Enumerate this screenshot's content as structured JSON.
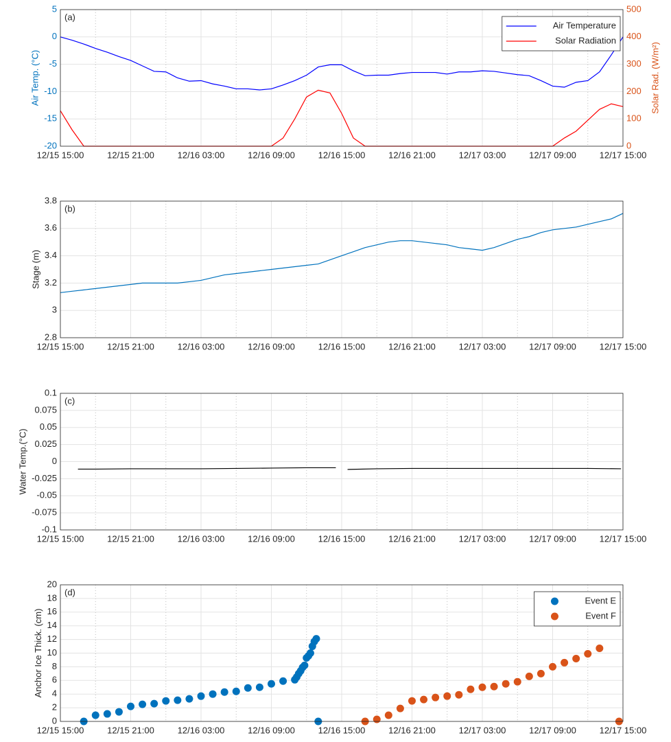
{
  "chart_data": [
    {
      "type": "line",
      "panel_label": "(a)",
      "ylabel": "Air Temp. (°C)",
      "y2label": "Solar Rad. (W/m²)",
      "ycolor": "#0072BD",
      "y2color": "#D95319",
      "grid": true,
      "minor_grid": true,
      "legend": "upper right",
      "xlim": [
        "12/15 15:00",
        "12/17 15:00"
      ],
      "xticks": [
        "12/15 15:00",
        "12/15 21:00",
        "12/16 03:00",
        "12/16 09:00",
        "12/16 15:00",
        "12/16 21:00",
        "12/17 03:00",
        "12/17 09:00",
        "12/17 15:00"
      ],
      "ylim": [
        -20,
        5
      ],
      "yticks": [
        -20,
        -15,
        -10,
        -5,
        0,
        5
      ],
      "y2lim": [
        0,
        500
      ],
      "y2ticks": [
        0,
        100,
        200,
        300,
        400,
        500
      ],
      "x": [
        "12/15 15:00",
        "12/15 16:00",
        "12/15 17:00",
        "12/15 18:00",
        "12/15 19:00",
        "12/15 20:00",
        "12/15 21:00",
        "12/15 22:00",
        "12/15 23:00",
        "12/16 00:00",
        "12/16 01:00",
        "12/16 02:00",
        "12/16 03:00",
        "12/16 04:00",
        "12/16 05:00",
        "12/16 06:00",
        "12/16 07:00",
        "12/16 08:00",
        "12/16 09:00",
        "12/16 10:00",
        "12/16 11:00",
        "12/16 12:00",
        "12/16 13:00",
        "12/16 14:00",
        "12/16 15:00",
        "12/16 16:00",
        "12/16 17:00",
        "12/16 18:00",
        "12/16 19:00",
        "12/16 20:00",
        "12/16 21:00",
        "12/16 22:00",
        "12/16 23:00",
        "12/17 00:00",
        "12/17 01:00",
        "12/17 02:00",
        "12/17 03:00",
        "12/17 04:00",
        "12/17 05:00",
        "12/17 06:00",
        "12/17 07:00",
        "12/17 08:00",
        "12/17 09:00",
        "12/17 10:00",
        "12/17 11:00",
        "12/17 12:00",
        "12/17 13:00",
        "12/17 14:00",
        "12/17 15:00"
      ],
      "series": [
        {
          "name": "Air Temperature",
          "color": "#0000ff",
          "values": [
            0,
            -0.6,
            -1.3,
            -2.1,
            -2.8,
            -3.6,
            -4.3,
            -5.3,
            -6.3,
            -6.4,
            -7.5,
            -8.1,
            -8.0,
            -8.6,
            -9.0,
            -9.5,
            -9.5,
            -9.7,
            -9.5,
            -8.8,
            -8.0,
            -7.0,
            -5.5,
            -5.1,
            -5.1,
            -6.2,
            -7.1,
            -7.0,
            -7.0,
            -6.7,
            -6.5,
            -6.5,
            -6.5,
            -6.8,
            -6.4,
            -6.4,
            -6.2,
            -6.3,
            -6.6,
            -6.9,
            -7.1,
            -8.0,
            -9.0,
            -9.2,
            -8.3,
            -8.0,
            -6.4,
            -3.3,
            0
          ]
        },
        {
          "name": "Solar Radiation",
          "color": "#ff0000",
          "axis": "y2",
          "values": [
            130,
            60,
            0,
            0,
            0,
            0,
            0,
            0,
            0,
            0,
            0,
            0,
            0,
            0,
            0,
            0,
            0,
            0,
            0,
            30,
            100,
            180,
            205,
            195,
            120,
            30,
            0,
            0,
            0,
            0,
            0,
            0,
            0,
            0,
            0,
            0,
            0,
            0,
            0,
            0,
            0,
            0,
            0,
            30,
            55,
            95,
            135,
            155,
            145
          ]
        }
      ]
    },
    {
      "type": "line",
      "panel_label": "(b)",
      "ylabel": "Stage (m)",
      "grid": true,
      "minor_grid": true,
      "xlim": [
        "12/15 15:00",
        "12/17 15:00"
      ],
      "xticks": [
        "12/15 15:00",
        "12/15 21:00",
        "12/16 03:00",
        "12/16 09:00",
        "12/16 15:00",
        "12/16 21:00",
        "12/17 03:00",
        "12/17 09:00",
        "12/17 15:00"
      ],
      "ylim": [
        2.8,
        3.8
      ],
      "yticks": [
        2.8,
        3,
        3.2,
        3.4,
        3.6,
        3.8
      ],
      "x": [
        "12/15 15:00",
        "12/15 16:00",
        "12/15 17:00",
        "12/15 18:00",
        "12/15 19:00",
        "12/15 20:00",
        "12/15 21:00",
        "12/15 22:00",
        "12/15 23:00",
        "12/16 00:00",
        "12/16 01:00",
        "12/16 02:00",
        "12/16 03:00",
        "12/16 04:00",
        "12/16 05:00",
        "12/16 06:00",
        "12/16 07:00",
        "12/16 08:00",
        "12/16 09:00",
        "12/16 10:00",
        "12/16 11:00",
        "12/16 12:00",
        "12/16 13:00",
        "12/16 14:00",
        "12/16 15:00",
        "12/16 16:00",
        "12/16 17:00",
        "12/16 18:00",
        "12/16 19:00",
        "12/16 20:00",
        "12/16 21:00",
        "12/16 22:00",
        "12/16 23:00",
        "12/17 00:00",
        "12/17 01:00",
        "12/17 02:00",
        "12/17 03:00",
        "12/17 04:00",
        "12/17 05:00",
        "12/17 06:00",
        "12/17 07:00",
        "12/17 08:00",
        "12/17 09:00",
        "12/17 10:00",
        "12/17 11:00",
        "12/17 12:00",
        "12/17 13:00",
        "12/17 14:00",
        "12/17 15:00"
      ],
      "series": [
        {
          "color": "#0072BD",
          "values": [
            3.13,
            3.14,
            3.15,
            3.16,
            3.17,
            3.18,
            3.19,
            3.2,
            3.2,
            3.2,
            3.2,
            3.21,
            3.22,
            3.24,
            3.26,
            3.27,
            3.28,
            3.29,
            3.3,
            3.31,
            3.32,
            3.33,
            3.34,
            3.37,
            3.4,
            3.43,
            3.46,
            3.48,
            3.5,
            3.51,
            3.51,
            3.5,
            3.49,
            3.48,
            3.46,
            3.45,
            3.44,
            3.46,
            3.49,
            3.52,
            3.54,
            3.57,
            3.59,
            3.6,
            3.61,
            3.63,
            3.65,
            3.67,
            3.71
          ]
        }
      ]
    },
    {
      "type": "line",
      "panel_label": "(c)",
      "ylabel": "Water Temp.(°C)",
      "grid": true,
      "minor_grid": true,
      "xlim": [
        "12/15 15:00",
        "12/17 15:00"
      ],
      "xticks": [
        "12/15 15:00",
        "12/15 21:00",
        "12/16 03:00",
        "12/16 09:00",
        "12/16 15:00",
        "12/16 21:00",
        "12/17 03:00",
        "12/17 09:00",
        "12/17 15:00"
      ],
      "ylim": [
        -0.1,
        0.1
      ],
      "yticks": [
        -0.1,
        -0.075,
        -0.05,
        -0.025,
        0,
        0.025,
        0.05,
        0.075,
        0.1
      ],
      "x": [
        "12/15 16:30",
        "12/15 18:00",
        "12/15 21:00",
        "12/16 00:00",
        "12/16 03:00",
        "12/16 06:00",
        "12/16 09:00",
        "12/16 12:00",
        "12/16 14:30",
        "12/16 15:00",
        "12/16 15:30",
        "12/16 18:00",
        "12/16 21:00",
        "12/17 00:00",
        "12/17 03:00",
        "12/17 06:00",
        "12/17 09:00",
        "12/17 12:00",
        "12/17 14:50"
      ],
      "series": [
        {
          "color": "#000000",
          "values": [
            -0.011,
            -0.011,
            -0.0105,
            -0.0105,
            -0.0105,
            -0.01,
            -0.0095,
            -0.009,
            -0.009,
            null,
            -0.0115,
            -0.0105,
            -0.01,
            -0.01,
            -0.01,
            -0.01,
            -0.01,
            -0.01,
            -0.0105
          ]
        }
      ]
    },
    {
      "type": "scatter",
      "panel_label": "(d)",
      "ylabel": "Anchor Ice Thick. (cm)",
      "grid": true,
      "minor_grid": true,
      "legend": "upper right",
      "xlim": [
        "12/15 15:00",
        "12/17 15:00"
      ],
      "xticks": [
        "12/15 15:00",
        "12/15 21:00",
        "12/16 03:00",
        "12/16 09:00",
        "12/16 15:00",
        "12/16 21:00",
        "12/17 03:00",
        "12/17 09:00",
        "12/17 15:00"
      ],
      "ylim": [
        0,
        20
      ],
      "yticks": [
        0,
        2,
        4,
        6,
        8,
        10,
        12,
        14,
        16,
        18,
        20
      ],
      "series": [
        {
          "name": "Event E",
          "color": "#0072BD",
          "x": [
            "12/15 17:00",
            "12/15 18:00",
            "12/15 19:00",
            "12/15 20:00",
            "12/15 21:00",
            "12/15 22:00",
            "12/15 23:00",
            "12/16 00:00",
            "12/16 01:00",
            "12/16 02:00",
            "12/16 03:00",
            "12/16 04:00",
            "12/16 05:00",
            "12/16 06:00",
            "12/16 07:00",
            "12/16 08:00",
            "12/16 09:00",
            "12/16 10:00",
            "12/16 11:00",
            "12/16 11:10",
            "12/16 11:20",
            "12/16 11:30",
            "12/16 11:40",
            "12/16 11:50",
            "12/16 12:00",
            "12/16 12:10",
            "12/16 12:20",
            "12/16 12:30",
            "12/16 12:40",
            "12/16 12:50",
            "12/16 13:00"
          ],
          "values": [
            0,
            0.9,
            1.1,
            1.4,
            2.2,
            2.5,
            2.6,
            3.0,
            3.1,
            3.3,
            3.7,
            4.0,
            4.3,
            4.4,
            4.9,
            5.0,
            5.5,
            5.9,
            6.1,
            6.5,
            7.0,
            7.4,
            7.9,
            8.2,
            9.3,
            9.6,
            10.0,
            11.0,
            11.7,
            12.1,
            0
          ]
        },
        {
          "name": "Event F",
          "color": "#D95319",
          "x": [
            "12/16 17:00",
            "12/16 18:00",
            "12/16 19:00",
            "12/16 20:00",
            "12/16 21:00",
            "12/16 22:00",
            "12/16 23:00",
            "12/17 00:00",
            "12/17 01:00",
            "12/17 02:00",
            "12/17 03:00",
            "12/17 04:00",
            "12/17 05:00",
            "12/17 06:00",
            "12/17 07:00",
            "12/17 08:00",
            "12/17 09:00",
            "12/17 10:00",
            "12/17 11:00",
            "12/17 12:00",
            "12/17 13:00",
            "12/17 14:40"
          ],
          "values": [
            0,
            0.3,
            0.9,
            1.9,
            3.0,
            3.2,
            3.5,
            3.7,
            3.9,
            4.7,
            5.0,
            5.1,
            5.5,
            5.8,
            6.6,
            7.0,
            8.0,
            8.6,
            9.2,
            9.9,
            10.7,
            0
          ]
        }
      ]
    }
  ]
}
